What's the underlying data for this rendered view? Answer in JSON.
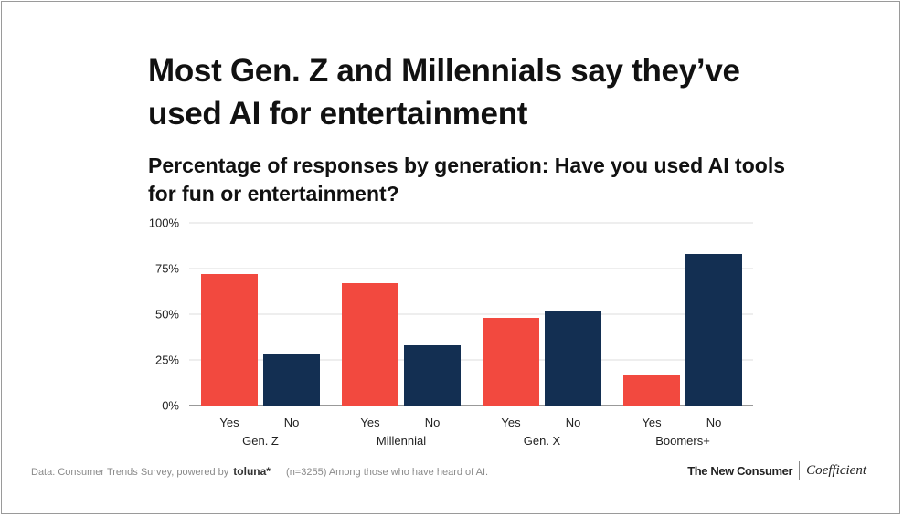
{
  "chart_data": {
    "type": "bar",
    "title": "Most Gen. Z and Millennials say they’ve used AI for entertainment",
    "subtitle": "Percentage of responses by generation: Have you used AI tools for fun or entertainment?",
    "xlabel": "",
    "ylabel": "",
    "ylim": [
      0,
      100
    ],
    "yticks": [
      0,
      25,
      50,
      75,
      100
    ],
    "ytick_labels": [
      "0%",
      "25%",
      "50%",
      "75%",
      "100%"
    ],
    "grid": true,
    "groups": [
      {
        "name": "Gen. Z",
        "bars": [
          {
            "label": "Yes",
            "value": 72
          },
          {
            "label": "No",
            "value": 28
          }
        ]
      },
      {
        "name": "Millennial",
        "bars": [
          {
            "label": "Yes",
            "value": 67
          },
          {
            "label": "No",
            "value": 33
          }
        ]
      },
      {
        "name": "Gen. X",
        "bars": [
          {
            "label": "Yes",
            "value": 48
          },
          {
            "label": "No",
            "value": 52
          }
        ]
      },
      {
        "name": "Boomers+",
        "bars": [
          {
            "label": "Yes",
            "value": 17
          },
          {
            "label": "No",
            "value": 83
          }
        ]
      }
    ],
    "colors": {
      "Yes": "#f2493f",
      "No": "#132f52"
    }
  },
  "footer": {
    "source_prefix": "Data: Consumer Trends Survey, powered by",
    "toluna": "toluna*",
    "note": "(n=3255) Among those who have heard of AI."
  },
  "brand": {
    "primary": "The New Consumer",
    "secondary": "Coefficient"
  }
}
